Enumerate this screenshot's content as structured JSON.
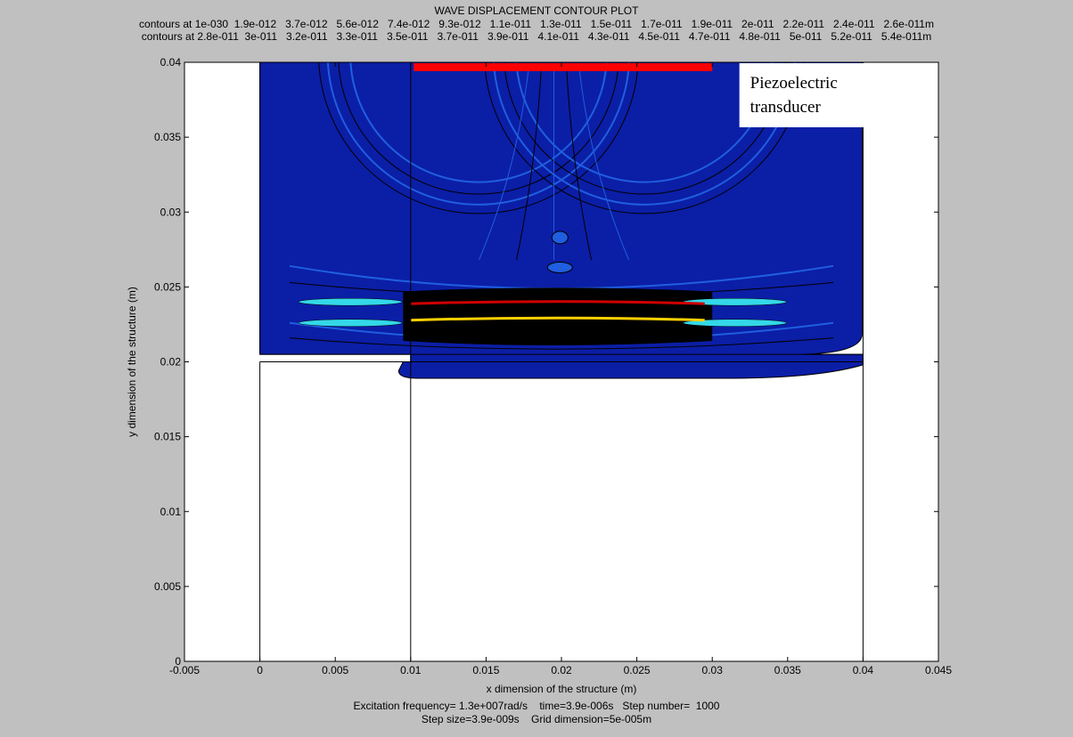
{
  "chart_data": {
    "type": "contour",
    "title": "WAVE DISPLACEMENT CONTOUR PLOT",
    "contour_lines": [
      "contours at 1e-030  1.9e-012   3.7e-012   5.6e-012   7.4e-012   9.3e-012   1.1e-011   1.3e-011   1.5e-011   1.7e-011   1.9e-011   2e-011   2.2e-011   2.4e-011   2.6e-011m",
      "contours at 2.8e-011  3e-011   3.2e-011   3.3e-011   3.5e-011   3.7e-011   3.9e-011   4.1e-011   4.3e-011   4.5e-011   4.7e-011   4.8e-011   5e-011   5.2e-011   5.4e-011m"
    ],
    "xlabel": "x dimension of the structure (m)",
    "ylabel": "y dimension of the structure (m)",
    "xlim": [
      -0.005,
      0.045
    ],
    "ylim": [
      0,
      0.04
    ],
    "x_ticks": [
      "-0.005",
      "0",
      "0.005",
      "0.01",
      "0.015",
      "0.02",
      "0.025",
      "0.03",
      "0.035",
      "0.04",
      "0.045"
    ],
    "x_tick_values": [
      -0.005,
      0,
      0.005,
      0.01,
      0.015,
      0.02,
      0.025,
      0.03,
      0.035,
      0.04,
      0.045
    ],
    "y_ticks": [
      "0",
      "0.005",
      "0.01",
      "0.015",
      "0.02",
      "0.025",
      "0.03",
      "0.035",
      "0.04"
    ],
    "y_tick_values": [
      0,
      0.005,
      0.01,
      0.015,
      0.02,
      0.025,
      0.03,
      0.035,
      0.04
    ],
    "annotation": {
      "line1": "Piezoelectric",
      "line2": "transducer"
    },
    "transducer": {
      "x_start": 0.0102,
      "x_end": 0.03,
      "y": 0.0398,
      "color": "#ff0000"
    },
    "structure": {
      "outer": {
        "x": [
          0,
          0.04
        ],
        "y": [
          0,
          0.04
        ]
      },
      "upper_layer_bottom": 0.0205,
      "lower_layer_top": 0.02,
      "inner_divider_x": 0.01
    },
    "wavefronts": [
      {
        "label": "red",
        "y": 0.024,
        "color": "#d00000"
      },
      {
        "label": "yellow",
        "y": 0.0229,
        "color": "#ffd000"
      }
    ],
    "colors": {
      "background": "#c0c0c0",
      "field": "#0b1ea6",
      "field_dark": "#000000",
      "contour_light": "#1f5fe0"
    },
    "footer": {
      "line1": "Excitation frequency= 1.3e+007rad/s    time=3.9e-006s   Step number=  1000",
      "line2": "Step size=3.9e-009s    Grid dimension=5e-005m"
    }
  }
}
